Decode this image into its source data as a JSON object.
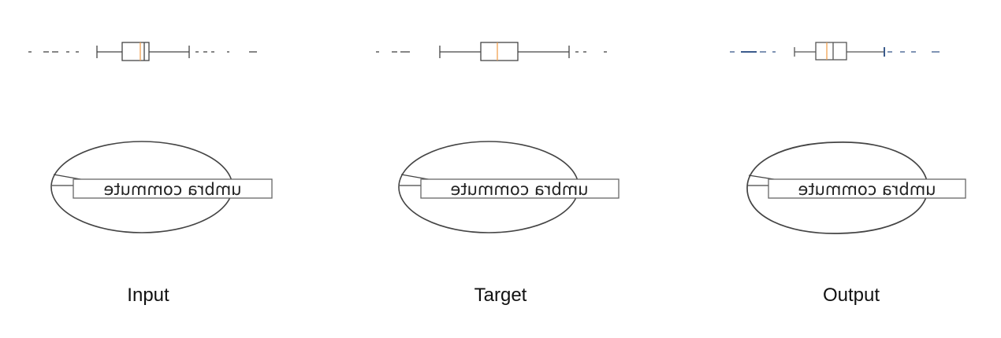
{
  "panels": [
    {
      "caption": "Input",
      "label_text": "umbra commute",
      "style": "clean"
    },
    {
      "caption": "Target",
      "label_text": "umbra commute",
      "style": "clean"
    },
    {
      "caption": "Output",
      "label_text": "umbra commute",
      "style": "noisy"
    }
  ],
  "colors": {
    "stroke": "#444444",
    "median": "#f0a050",
    "outlier_clean": "#555555",
    "outlier_noisy": "#3b5b8c",
    "label_text": "#222222"
  }
}
